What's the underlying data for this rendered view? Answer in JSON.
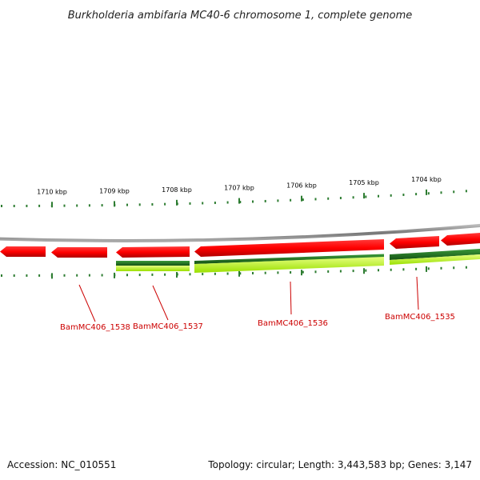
{
  "title": "Burkholderia ambifaria MC40-6 chromosome 1, complete genome",
  "ticks": [
    {
      "label": "1710 kbp",
      "kbp": 1710
    },
    {
      "label": "1709 kbp",
      "kbp": 1709
    },
    {
      "label": "1708 kbp",
      "kbp": 1708
    },
    {
      "label": "1707 kbp",
      "kbp": 1707
    },
    {
      "label": "1706 kbp",
      "kbp": 1706
    },
    {
      "label": "1705 kbp",
      "kbp": 1705
    },
    {
      "label": "1704 kbp",
      "kbp": 1704
    }
  ],
  "genes": [
    {
      "label": "BamMC406_1538"
    },
    {
      "label": "BamMC406_1537"
    },
    {
      "label": "BamMC406_1536"
    },
    {
      "label": "BamMC406_1535"
    }
  ],
  "footer": {
    "accession": "Accession: NC_010551",
    "info": "Topology: circular; Length: 3,443,583 bp; Genes: 3,147"
  },
  "colors": {
    "gene_red": "#ff0000",
    "gene_dark_green": "#1e7a1e",
    "gene_light_green": "#ccff33",
    "tick_green": "#2e7d32",
    "backbone": "#888888",
    "label_red": "#cc0000"
  }
}
